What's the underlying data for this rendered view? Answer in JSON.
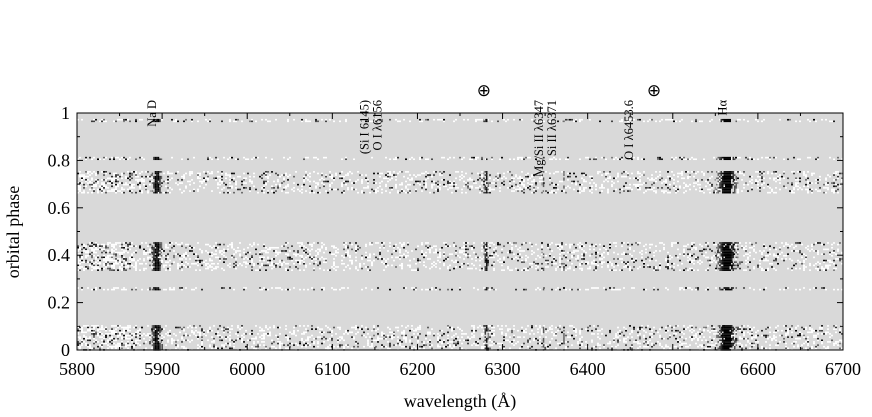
{
  "chart_data": {
    "type": "heatmap",
    "title": "",
    "xlabel": "wavelength (Å)",
    "ylabel": "orbital phase",
    "xlim": [
      5800,
      6700
    ],
    "ylim": [
      0,
      1
    ],
    "x_ticks": [
      "5800",
      "5900",
      "6000",
      "6100",
      "6200",
      "6300",
      "6400",
      "6500",
      "6600",
      "6700"
    ],
    "y_ticks": [
      "0",
      "0.2",
      "0.4",
      "0.6",
      "0.8",
      "1"
    ],
    "grid": false,
    "colormap": {
      "background": "#d9d9d9",
      "absorption": "#000000",
      "emission": "#ffffff"
    },
    "line_labels": [
      {
        "id": "nad",
        "text": [
          "Na D"
        ],
        "wavelength": 5893
      },
      {
        "id": "si-o",
        "text": [
          "(Si I  6145)",
          "O I λ6156"
        ],
        "wavelength": 6150
      },
      {
        "id": "telluric-1",
        "text": [
          "⊕"
        ],
        "wavelength": 6278
      },
      {
        "id": "mg-si",
        "text": [
          "Mg/Si II λ6347",
          "Si II λ6371"
        ],
        "wavelength": 6355
      },
      {
        "id": "oi-6453",
        "text": [
          "O I λ6453.6"
        ],
        "wavelength": 6453
      },
      {
        "id": "telluric-2",
        "text": [
          "⊕"
        ],
        "wavelength": 6478
      },
      {
        "id": "halpha",
        "text": [
          "Hα"
        ],
        "wavelength": 6563
      }
    ],
    "phase_bands": [
      {
        "from": 0.0,
        "to": 0.105
      },
      {
        "from": 0.255,
        "to": 0.265
      },
      {
        "from": 0.335,
        "to": 0.455
      },
      {
        "from": 0.665,
        "to": 0.755
      },
      {
        "from": 0.805,
        "to": 0.815
      },
      {
        "from": 0.965,
        "to": 0.975
      }
    ],
    "absorption_features": [
      {
        "center": 5893,
        "width": 14,
        "strength": 1.0
      },
      {
        "center": 6280,
        "width": 6,
        "strength": 0.75
      },
      {
        "center": 6347,
        "width": 3,
        "strength": 0.35
      },
      {
        "center": 6371,
        "width": 3,
        "strength": 0.3
      },
      {
        "center": 6563,
        "width": 28,
        "strength": 1.0
      }
    ]
  }
}
